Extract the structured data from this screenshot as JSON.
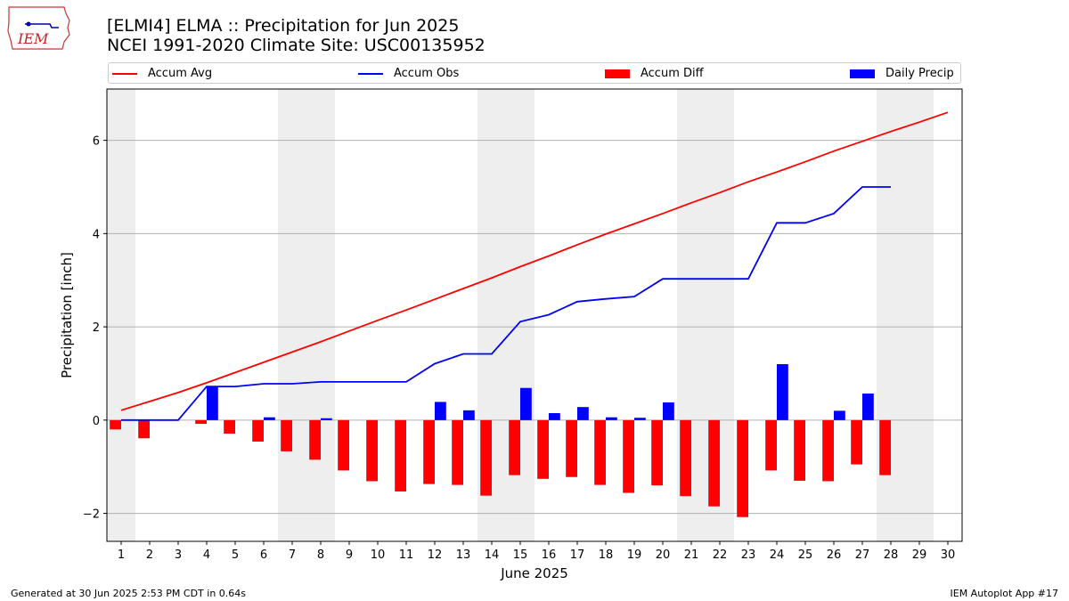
{
  "header": {
    "line1": "[ELMI4] ELMA :: Precipitation for Jun 2025",
    "line2": "NCEI 1991-2020 Climate Site: USC00135952"
  },
  "logo": {
    "text": "IEM",
    "icon": "iowa-state-outline-logo"
  },
  "footer": {
    "left": "Generated at 30 Jun 2025 2:53 PM CDT in 0.64s",
    "right": "IEM Autoplot App #17"
  },
  "colors": {
    "avg": "#ff0000",
    "obs": "#0000ff",
    "diff": "#ff0000",
    "daily": "#0000ff",
    "weekend_band": "#eeeeee",
    "grid": "#b0b0b0"
  },
  "chart_data": {
    "type": "bar",
    "xlabel": "June 2025",
    "ylabel": "Precipitation [inch]",
    "x": [
      1,
      2,
      3,
      4,
      5,
      6,
      7,
      8,
      9,
      10,
      11,
      12,
      13,
      14,
      15,
      16,
      17,
      18,
      19,
      20,
      21,
      22,
      23,
      24,
      25,
      26,
      27,
      28,
      29,
      30
    ],
    "xlim": [
      0.5,
      30.5
    ],
    "ylim": [
      -2.6,
      7.1
    ],
    "yticks": [
      -2,
      0,
      2,
      4,
      6
    ],
    "ytick_labels": [
      "−2",
      "0",
      "2",
      "4",
      "6"
    ],
    "grid": true,
    "legend_placement": "top",
    "weekend_bands": [
      [
        0.5,
        1.5
      ],
      [
        6.5,
        8.5
      ],
      [
        13.5,
        15.5
      ],
      [
        20.5,
        22.5
      ],
      [
        27.5,
        29.5
      ]
    ],
    "series": [
      {
        "name": "Accum Avg",
        "type": "line",
        "values": [
          0.21,
          0.4,
          0.59,
          0.8,
          1.02,
          1.24,
          1.46,
          1.68,
          1.91,
          2.14,
          2.36,
          2.59,
          2.82,
          3.05,
          3.29,
          3.52,
          3.76,
          3.99,
          4.21,
          4.43,
          4.66,
          4.88,
          5.11,
          5.32,
          5.54,
          5.77,
          5.98,
          6.19,
          6.39,
          6.6
        ]
      },
      {
        "name": "Accum Obs",
        "type": "line",
        "values": [
          0.0,
          0.0,
          0.0,
          0.72,
          0.72,
          0.78,
          0.78,
          0.82,
          0.82,
          0.82,
          0.82,
          1.21,
          1.42,
          1.42,
          2.11,
          2.26,
          2.54,
          2.6,
          2.65,
          3.03,
          3.03,
          3.03,
          3.03,
          4.23,
          4.23,
          4.43,
          5.0,
          5.0,
          null,
          null
        ]
      },
      {
        "name": "Accum Diff",
        "type": "bar",
        "values": [
          -0.2,
          -0.39,
          null,
          -0.08,
          -0.29,
          -0.46,
          -0.67,
          -0.85,
          -1.08,
          -1.31,
          -1.53,
          -1.37,
          -1.39,
          -1.62,
          -1.18,
          -1.26,
          -1.22,
          -1.39,
          -1.56,
          -1.4,
          -1.63,
          -1.85,
          -2.08,
          -1.08,
          -1.3,
          -1.31,
          -0.95,
          -1.18,
          null,
          null
        ]
      },
      {
        "name": "Daily Precip",
        "type": "bar",
        "values": [
          0.0,
          0.0,
          0.0,
          0.72,
          0.0,
          0.06,
          0.0,
          0.04,
          0.0,
          0.0,
          0.0,
          0.39,
          0.21,
          0.0,
          0.69,
          0.15,
          0.28,
          0.06,
          0.05,
          0.38,
          0.0,
          0.0,
          0.0,
          1.2,
          0.0,
          0.2,
          0.57,
          0.0,
          null,
          null
        ]
      }
    ]
  }
}
